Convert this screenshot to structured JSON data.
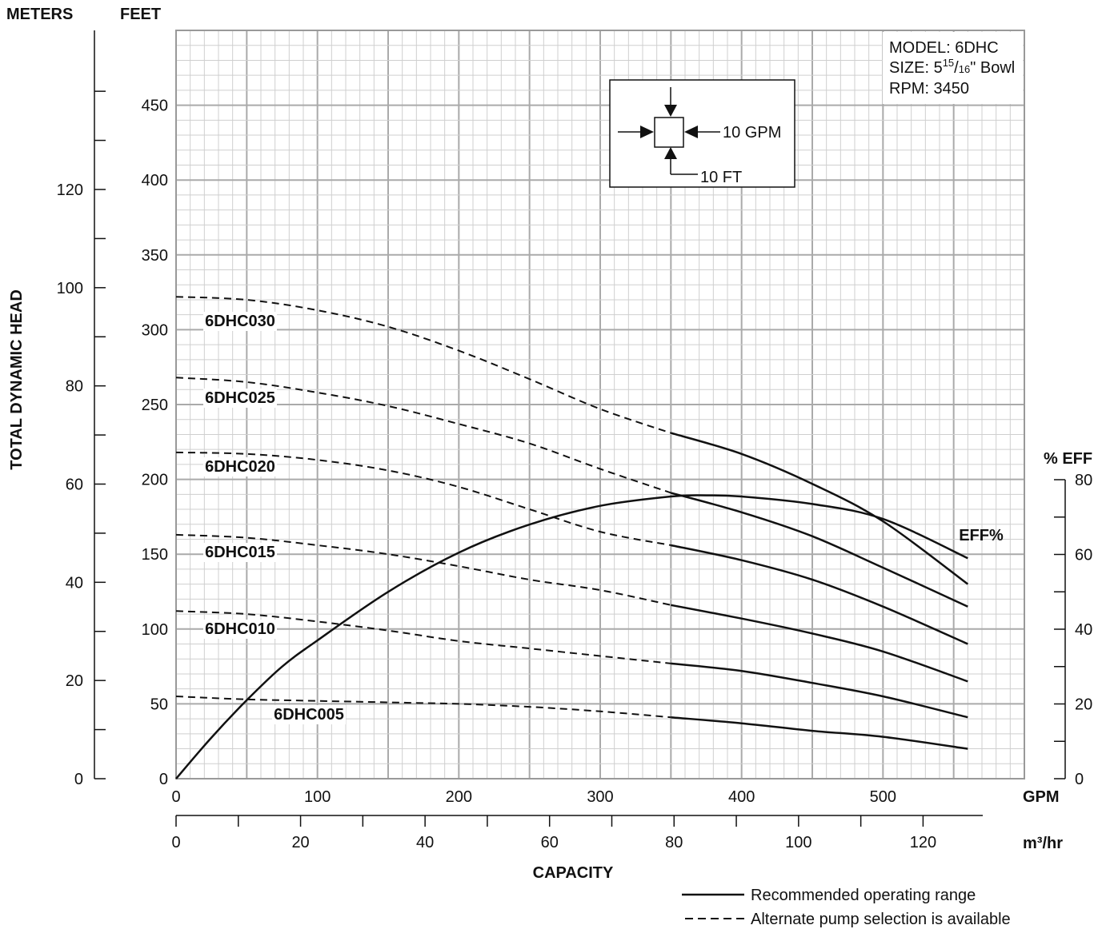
{
  "chart_data": {
    "type": "line",
    "model_info": [
      "MODEL: 6DHC",
      "SIZE: 5",
      "RPM: 3450"
    ],
    "bowl_size": {
      "whole": "5",
      "sup": "15",
      "sub": "16",
      "suffix": "\" Bowl"
    },
    "scale_box": {
      "gpm": "10 GPM",
      "ft": "10 FT"
    },
    "headers": {
      "meters": "METERS",
      "feet": "FEET",
      "eff": "% EFF",
      "gpm": "GPM",
      "m3hr": "m³/hr",
      "capacity": "CAPACITY",
      "ylabel": "TOTAL DYNAMIC HEAD"
    },
    "axes": {
      "gpm_range": [
        0,
        600
      ],
      "feet_range": [
        0,
        500
      ],
      "eff_range": [
        0,
        80
      ],
      "feet_ticks": [
        0,
        50,
        100,
        150,
        200,
        250,
        300,
        350,
        400,
        450
      ],
      "gpm_ticks": [
        0,
        100,
        200,
        300,
        400,
        500
      ],
      "meter_ticks": [
        0,
        20,
        40,
        60,
        80,
        100,
        120
      ],
      "m3hr_ticks": [
        0,
        20,
        40,
        60,
        80,
        100,
        120
      ],
      "eff_ticks": [
        0,
        20,
        40,
        60,
        80
      ],
      "grid": true
    },
    "recommended_start_gpm": 350,
    "series": [
      {
        "name": "6DHC030",
        "points": [
          [
            0,
            322
          ],
          [
            50,
            320
          ],
          [
            100,
            313
          ],
          [
            150,
            302
          ],
          [
            200,
            286
          ],
          [
            250,
            267
          ],
          [
            300,
            247
          ],
          [
            350,
            231
          ],
          [
            400,
            217
          ],
          [
            450,
            197
          ],
          [
            500,
            172
          ],
          [
            560,
            130
          ]
        ]
      },
      {
        "name": "6DHC025",
        "points": [
          [
            0,
            268
          ],
          [
            50,
            265
          ],
          [
            100,
            258
          ],
          [
            150,
            249
          ],
          [
            200,
            237
          ],
          [
            250,
            224
          ],
          [
            300,
            207
          ],
          [
            350,
            191
          ],
          [
            400,
            178
          ],
          [
            450,
            162
          ],
          [
            500,
            141
          ],
          [
            560,
            115
          ]
        ]
      },
      {
        "name": "6DHC020",
        "points": [
          [
            0,
            218
          ],
          [
            50,
            217
          ],
          [
            100,
            213
          ],
          [
            150,
            206
          ],
          [
            200,
            195
          ],
          [
            250,
            180
          ],
          [
            300,
            165
          ],
          [
            350,
            156
          ],
          [
            400,
            146
          ],
          [
            450,
            133
          ],
          [
            500,
            115
          ],
          [
            560,
            90
          ]
        ]
      },
      {
        "name": "6DHC015",
        "points": [
          [
            0,
            163
          ],
          [
            50,
            161
          ],
          [
            100,
            156
          ],
          [
            150,
            150
          ],
          [
            200,
            142
          ],
          [
            250,
            133
          ],
          [
            300,
            126
          ],
          [
            350,
            116
          ],
          [
            400,
            107
          ],
          [
            450,
            97
          ],
          [
            500,
            85
          ],
          [
            560,
            65
          ]
        ]
      },
      {
        "name": "6DHC010",
        "points": [
          [
            0,
            112
          ],
          [
            50,
            110
          ],
          [
            100,
            105
          ],
          [
            150,
            99
          ],
          [
            200,
            92
          ],
          [
            250,
            87
          ],
          [
            300,
            82
          ],
          [
            350,
            77
          ],
          [
            400,
            72
          ],
          [
            450,
            64
          ],
          [
            500,
            55
          ],
          [
            560,
            41
          ]
        ]
      },
      {
        "name": "6DHC005",
        "points": [
          [
            0,
            55
          ],
          [
            50,
            53
          ],
          [
            100,
            52
          ],
          [
            150,
            51
          ],
          [
            200,
            50
          ],
          [
            250,
            48
          ],
          [
            300,
            45
          ],
          [
            350,
            41
          ],
          [
            400,
            37
          ],
          [
            450,
            32
          ],
          [
            500,
            28
          ],
          [
            560,
            20
          ]
        ]
      },
      {
        "name": "EFF%",
        "axis": "eff",
        "points": [
          [
            0,
            0
          ],
          [
            25,
            11
          ],
          [
            50,
            21
          ],
          [
            75,
            30
          ],
          [
            100,
            37
          ],
          [
            150,
            50
          ],
          [
            200,
            60.5
          ],
          [
            250,
            68
          ],
          [
            300,
            73
          ],
          [
            350,
            75.5
          ],
          [
            375,
            75.8
          ],
          [
            400,
            75.5
          ],
          [
            450,
            73.5
          ],
          [
            500,
            69.5
          ],
          [
            560,
            59
          ]
        ]
      }
    ],
    "legend": [
      "Recommended operating range",
      "Alternate pump selection is available"
    ]
  }
}
